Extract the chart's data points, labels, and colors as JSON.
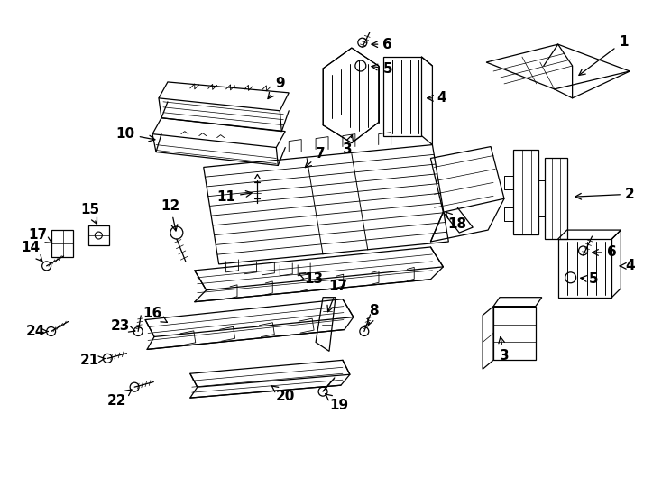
{
  "bg_color": "#ffffff",
  "line_color": "#000000",
  "fig_width": 7.34,
  "fig_height": 5.4,
  "dpi": 100,
  "xlim": [
    0,
    734
  ],
  "ylim": [
    0,
    540
  ]
}
